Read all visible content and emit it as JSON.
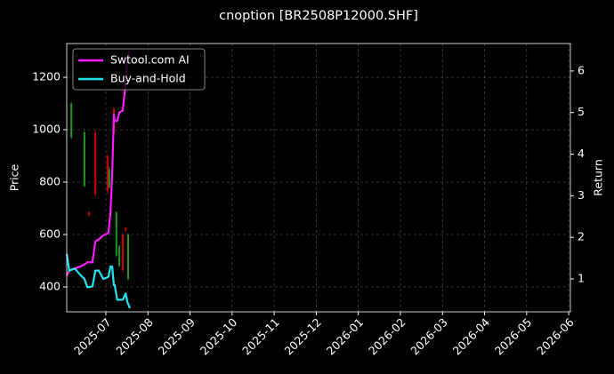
{
  "chart_data": {
    "type": "candlestick",
    "title": "cnoption [BR2508P12000.SHF]",
    "ylabel": "Price",
    "y2label": "Return",
    "xlim": [
      -0.93,
      11.04
    ],
    "xticks": [
      {
        "value": 0,
        "label": "2025-07"
      },
      {
        "value": 1,
        "label": "2025-08"
      },
      {
        "value": 2,
        "label": "2025-09"
      },
      {
        "value": 3,
        "label": "2025-10"
      },
      {
        "value": 4,
        "label": "2025-11"
      },
      {
        "value": 5,
        "label": "2025-12"
      },
      {
        "value": 6,
        "label": "2026-01"
      },
      {
        "value": 7,
        "label": "2026-02"
      },
      {
        "value": 8,
        "label": "2026-03"
      },
      {
        "value": 9,
        "label": "2026-04"
      },
      {
        "value": 10,
        "label": "2026-05"
      },
      {
        "value": 11,
        "label": "2026-06"
      }
    ],
    "ylim": [
      305,
      1329
    ],
    "yticks": [
      400,
      600,
      800,
      1000,
      1200
    ],
    "y2lim": [
      0.21,
      6.66
    ],
    "y2ticks": [
      1,
      2,
      3,
      4,
      5,
      6
    ],
    "grid": true,
    "legend": "upper-left",
    "candles": {
      "up_color": "#1f9a1f",
      "down_color": "#d40000",
      "x": [
        -0.82,
        -0.51,
        -0.4,
        -0.25,
        0.04,
        0.08,
        0.19,
        0.25,
        0.32,
        0.4,
        0.47,
        0.53
      ],
      "open": [
        970,
        785,
        685,
        990,
        900,
        780,
        1080,
        520,
        480,
        600,
        625,
        430
      ],
      "high": [
        1105,
        995,
        690,
        1000,
        905,
        860,
        1085,
        690,
        560,
        605,
        628,
        605
      ],
      "low": [
        965,
        780,
        670,
        745,
        755,
        775,
        975,
        515,
        475,
        455,
        610,
        425
      ],
      "close": [
        1100,
        990,
        675,
        755,
        765,
        850,
        985,
        685,
        555,
        465,
        615,
        600
      ]
    },
    "series": [
      {
        "name": "Swtool.com AI",
        "color": "#ff1aff",
        "axis": "y2",
        "x": [
          -0.93,
          -0.87,
          -0.74,
          -0.61,
          -0.51,
          -0.44,
          -0.32,
          -0.25,
          -0.17,
          -0.06,
          0.06,
          0.11,
          0.15,
          0.19,
          0.21,
          0.27,
          0.32,
          0.4,
          0.47,
          0.51,
          0.57
        ],
        "values": [
          1.08,
          1.2,
          1.25,
          1.3,
          1.35,
          1.4,
          1.4,
          1.9,
          1.95,
          2.05,
          2.1,
          2.6,
          3.5,
          4.95,
          4.8,
          4.8,
          5.0,
          5.05,
          5.7,
          6.3,
          6.5
        ]
      },
      {
        "name": "Buy-and-Hold",
        "color": "#22e5f2",
        "axis": "y2",
        "x": [
          -0.93,
          -0.87,
          -0.74,
          -0.61,
          -0.51,
          -0.44,
          -0.32,
          -0.25,
          -0.17,
          -0.06,
          0.06,
          0.11,
          0.15,
          0.19,
          0.21,
          0.27,
          0.32,
          0.4,
          0.47,
          0.51,
          0.57
        ],
        "values": [
          1.6,
          1.2,
          1.25,
          1.1,
          1.0,
          0.8,
          0.82,
          1.2,
          1.2,
          1.0,
          1.05,
          1.3,
          1.3,
          0.85,
          0.85,
          0.5,
          0.5,
          0.5,
          0.65,
          0.45,
          0.3
        ]
      }
    ]
  }
}
